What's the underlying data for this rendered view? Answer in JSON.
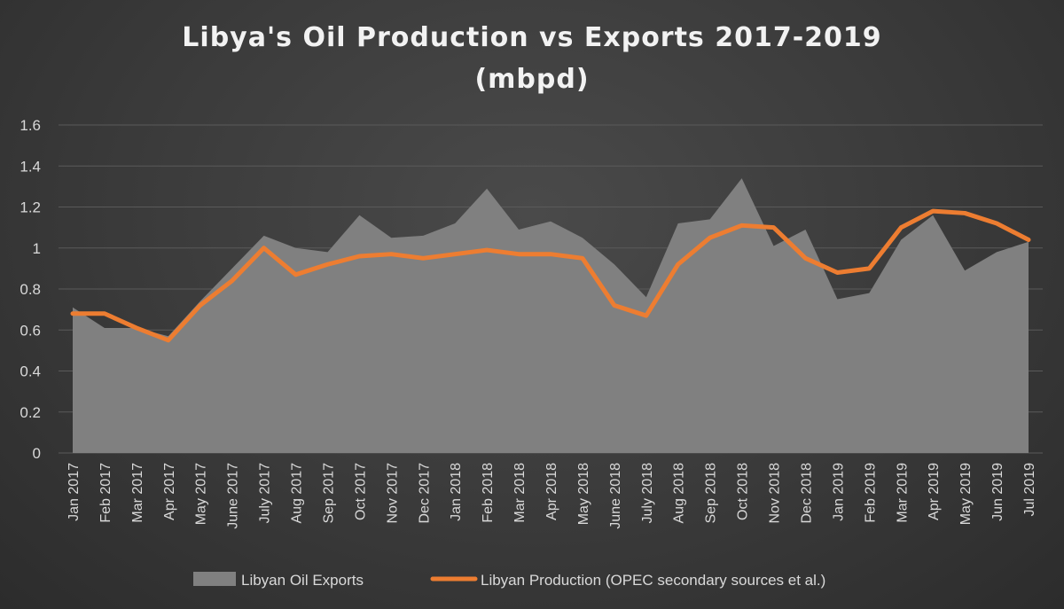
{
  "chart_data": {
    "type": "line",
    "title": "Libya's Oil Production vs Exports 2017-2019",
    "subtitle": "(mbpd)",
    "categories": [
      "Jan 2017",
      "Feb 2017",
      "Mar 2017",
      "Apr 2017",
      "May 2017",
      "June 2017",
      "July 2017",
      "Aug 2017",
      "Sep 2017",
      "Oct 2017",
      "Nov 2017",
      "Dec 2017",
      "Jan 2018",
      "Feb 2018",
      "Mar 2018",
      "Apr 2018",
      "May 2018",
      "June 2018",
      "July 2018",
      "Aug 2018",
      "Sep 2018",
      "Oct 2018",
      "Nov 2018",
      "Dec 2018",
      "Jan 2019",
      "Feb 2019",
      "Mar 2019",
      "Apr 2019",
      "May 2019",
      "Jun 2019",
      "Jul 2019"
    ],
    "ylim": [
      0,
      1.6
    ],
    "yticks": [
      "0",
      "0.2",
      "0.4",
      "0.6",
      "0.8",
      "1",
      "1.2",
      "1.4",
      "1.6"
    ],
    "grid": true,
    "legend_position": "bottom",
    "series": [
      {
        "name": "Libyan Oil Exports",
        "type": "area",
        "color": "#808080",
        "values": [
          0.71,
          0.61,
          0.61,
          0.57,
          0.74,
          0.9,
          1.06,
          1.0,
          0.98,
          1.16,
          1.05,
          1.06,
          1.12,
          1.29,
          1.09,
          1.13,
          1.05,
          0.92,
          0.76,
          1.12,
          1.14,
          1.34,
          1.01,
          1.09,
          0.75,
          0.78,
          1.04,
          1.16,
          0.89,
          0.98,
          1.03
        ]
      },
      {
        "name": "Libyan Production (OPEC secondary sources et al.)",
        "type": "line",
        "color": "#ed7d31",
        "values": [
          0.68,
          0.68,
          0.61,
          0.55,
          0.72,
          0.84,
          1.0,
          0.87,
          0.92,
          0.96,
          0.97,
          0.95,
          0.97,
          0.99,
          0.97,
          0.97,
          0.95,
          0.72,
          0.67,
          0.92,
          1.05,
          1.11,
          1.1,
          0.95,
          0.88,
          0.9,
          1.1,
          1.18,
          1.17,
          1.12,
          1.04
        ]
      }
    ]
  }
}
